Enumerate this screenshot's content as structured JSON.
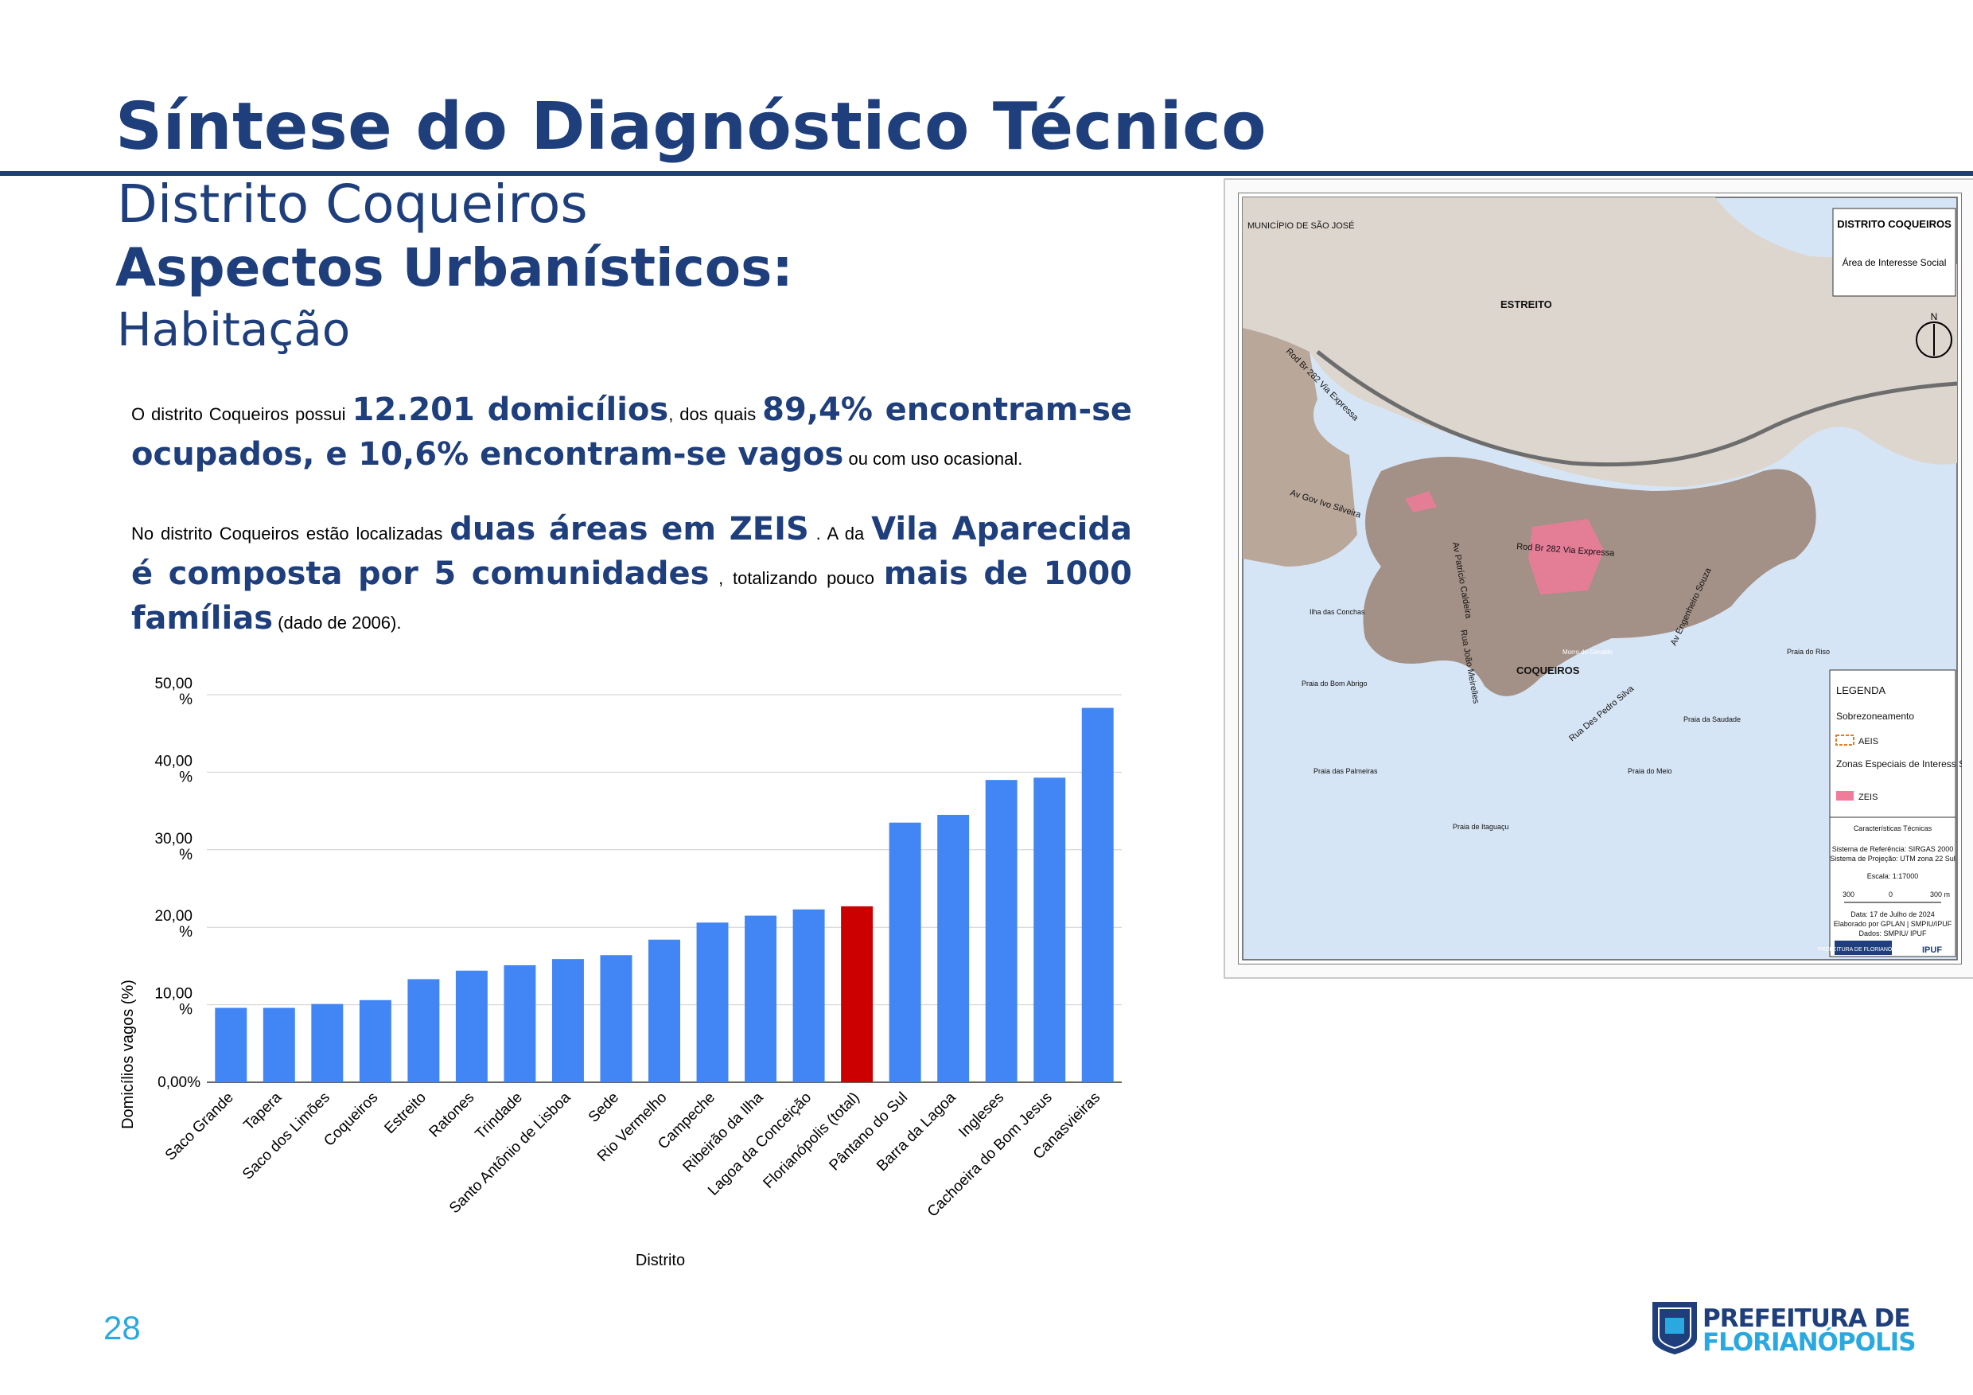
{
  "header": {
    "title": "Síntese do Diagnóstico Técnico",
    "subtitle": "Distrito Coqueiros",
    "heading": "Aspectos Urbanísticos:",
    "subheading": "Habitação"
  },
  "paragraph1": {
    "t1": "O distrito Coqueiros possui ",
    "b1": "12.201 domicílios",
    "t2": ", dos quais ",
    "b2": "89,4% encontram-se ocupados, e 10,6% encontram-se vagos",
    "t3": " ou com uso ocasional."
  },
  "paragraph2": {
    "t1": "No distrito Coqueiros estão localizadas ",
    "b1": "duas áreas em ZEIS",
    "t2": " . A da ",
    "b2": "Vila Aparecida é composta por 5 comunidades",
    "t3": " , totalizando pouco ",
    "b3": "mais de 1000 famílias",
    "t4": " (dado de 2006)."
  },
  "chart_data": {
    "type": "bar",
    "categories": [
      "Saco Grande",
      "Tapera",
      "Saco dos Limões",
      "Coqueiros",
      "Estreito",
      "Ratones",
      "Trindade",
      "Santo Antônio de Lisboa",
      "Sede",
      "Rio Vermelho",
      "Campeche",
      "Ribeirão da Ilha",
      "Lagoa da Conceição",
      "Florianópolis (total)",
      "Pântano do Sul",
      "Barra da Lagoa",
      "Ingleses",
      "Cachoeira do Bom Jesus",
      "Canasvieiras"
    ],
    "values": [
      9.6,
      9.6,
      10.1,
      10.6,
      13.3,
      14.4,
      15.1,
      15.9,
      16.4,
      18.4,
      20.6,
      21.5,
      22.3,
      22.7,
      33.5,
      34.5,
      39.0,
      39.3,
      48.3
    ],
    "highlight_index": 13,
    "colors": {
      "default": "#4285f4",
      "highlight": "#cc0000"
    },
    "xlabel": "Distrito",
    "ylabel": "Domicílios vagos (%)",
    "ylim": [
      0,
      50
    ],
    "yticks": [
      "0,00%",
      "10,00 %",
      "20,00 %",
      "30,00 %",
      "40,00 %",
      "50,00 %"
    ],
    "grid": true
  },
  "map": {
    "legend_title": "DISTRITO COQUEIROS",
    "legend_subtitle": "Área de Interesse Social",
    "labels": {
      "municipio": "MUNICÍPIO DE SÃO JOSÉ",
      "estreito": "ESTREITO",
      "coqueiros": "COQUEIROS",
      "rod_br_282_a": "Rod Br 282 Via Expressa",
      "rod_br_282_b": "Rod Br 282 Via Expressa",
      "av_ivo": "Av Gov Ivo Silveira",
      "av_patricio": "Av Patrício Caldeira",
      "rua_joao": "Rua João Meirelles",
      "rua_desembargador": "Rua Des Pedro Silva",
      "av_engenheiro": "Av Engenheiro Souza",
      "ilha": "Ilha das Conchas",
      "bom_abrigo": "Praia do Bom Abrigo",
      "palmeiras": "Praia das Palmeiras",
      "itaguacu": "Praia de Itaguaçu",
      "meio": "Praia do Meio",
      "saudade": "Praia da Saudade",
      "riso": "Praia do Riso",
      "morro": "Morro do Geraldo",
      "north": "N"
    },
    "legend": {
      "title": "LEGENDA",
      "sobre": "Sobrezoneamento",
      "aeis": "AEIS",
      "zonas": "Zonas Especiais de Interess Social (ZEIS)",
      "zeis": "ZEIS",
      "tech_title": "Características Técnicas",
      "ref": "Sistema de Referência: SIRGAS 2000",
      "proj": "Sistema de Projeção: UTM zona 22 Sul",
      "scale": "Escala: 1:17000",
      "s1": "300",
      "s2": "0",
      "s3": "300 m",
      "date": "Data: 17 de Julho de 2024",
      "elab": "Elaborado por GPLAN | SMPIU/IPUF",
      "dados": "Dados: SMPIU/ IPUF",
      "logo1": "PREFEITURA DE FLORIANÓPOLIS",
      "logo2": "IPUF"
    }
  },
  "footer": {
    "page_number": "28",
    "logo_line1": "PREFEITURA DE",
    "logo_line2": "FLORIANÓPOLIS"
  }
}
